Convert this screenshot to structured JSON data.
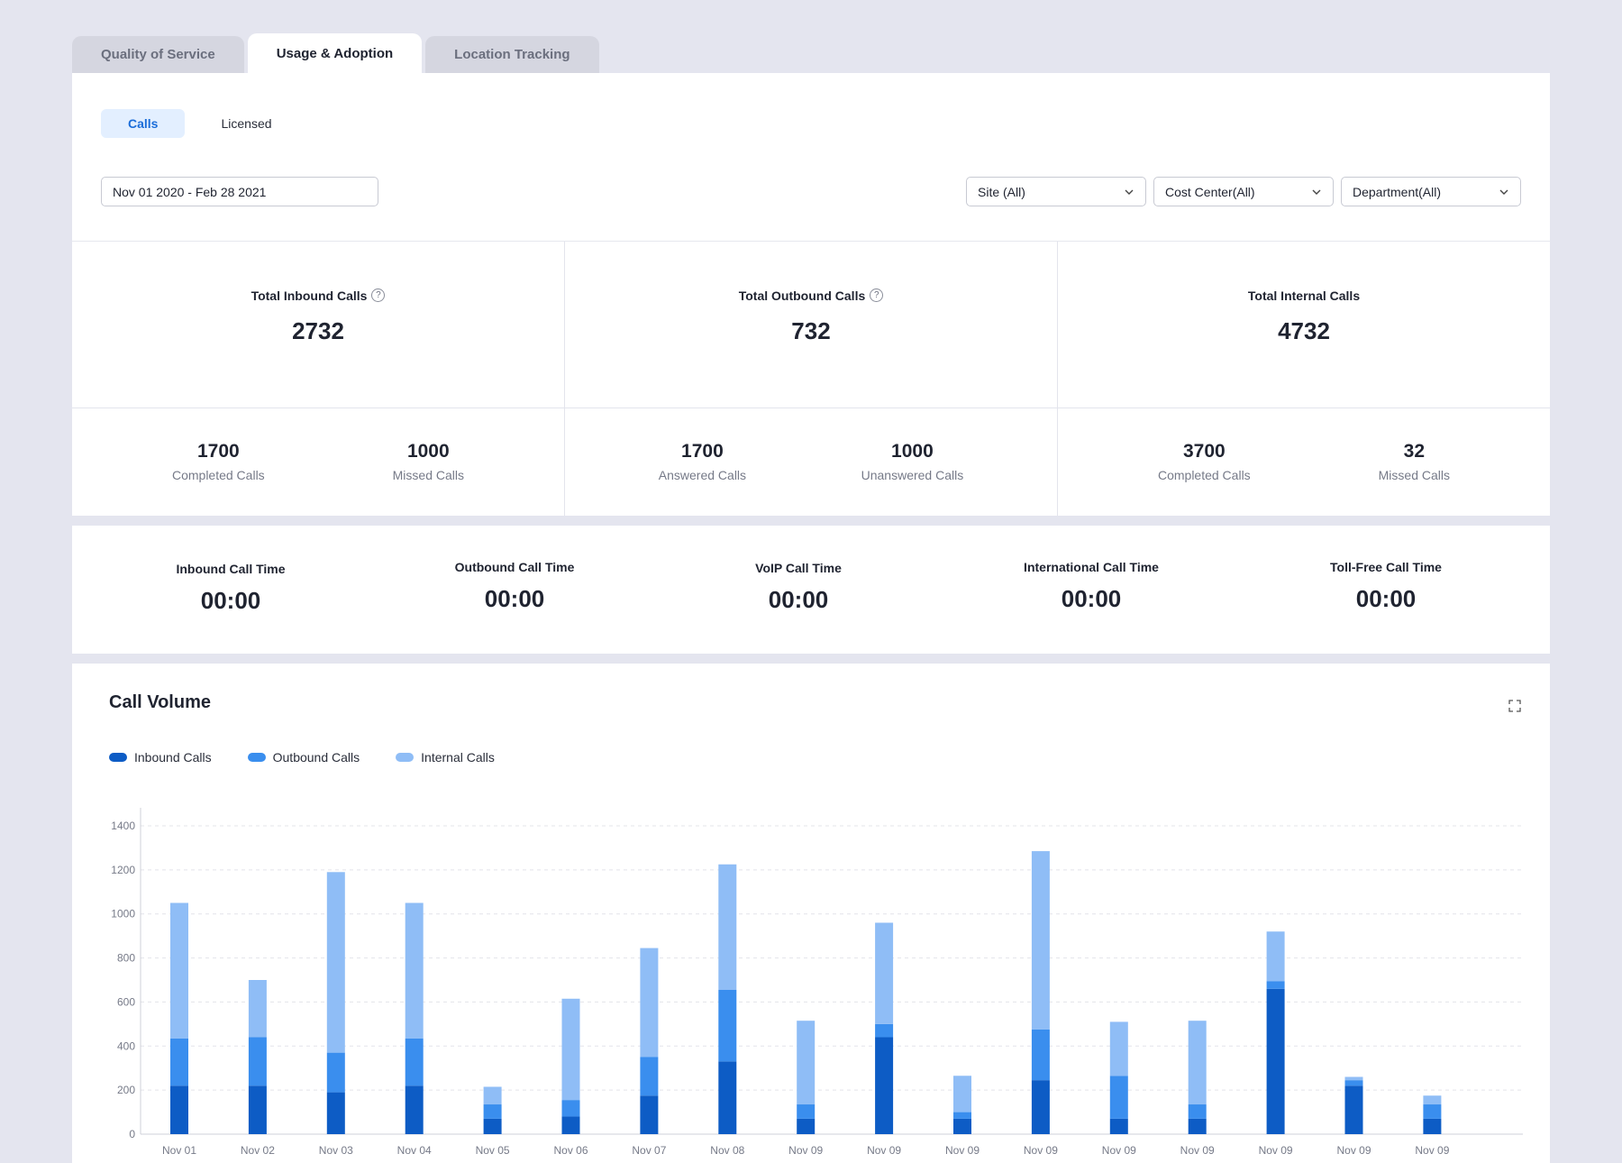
{
  "tabs": [
    "Quality of Service",
    "Usage & Adoption",
    "Location Tracking"
  ],
  "subtabs": [
    "Calls",
    "Licensed"
  ],
  "filters": {
    "date_range": "Nov 01 2020 - Feb 28 2021",
    "site": "Site (All)",
    "cost_center": "Cost Center(All)",
    "department": "Department(All)"
  },
  "stats": [
    {
      "title": "Total Inbound Calls",
      "value": "2732",
      "help": true,
      "a_value": "1700",
      "a_label": "Completed Calls",
      "b_value": "1000",
      "b_label": "Missed Calls"
    },
    {
      "title": "Total Outbound Calls",
      "value": "732",
      "help": true,
      "a_value": "1700",
      "a_label": "Answered Calls",
      "b_value": "1000",
      "b_label": "Unanswered Calls"
    },
    {
      "title": "Total Internal Calls",
      "value": "4732",
      "help": false,
      "a_value": "3700",
      "a_label": "Completed Calls",
      "b_value": "32",
      "b_label": "Missed Calls"
    }
  ],
  "call_times": [
    {
      "label": "Inbound Call Time",
      "value": "00:00"
    },
    {
      "label": "Outbound Call Time",
      "value": "00:00"
    },
    {
      "label": "VoIP Call Time",
      "value": "00:00"
    },
    {
      "label": "International Call Time",
      "value": "00:00"
    },
    {
      "label": "Toll-Free Call Time",
      "value": "00:00"
    }
  ],
  "chart_title": "Call Volume",
  "colors": {
    "inbound": "#0d5cc5",
    "outbound": "#3a8eee",
    "internal": "#8fbdf6",
    "accent": "#1b6dd9"
  },
  "chart_data": {
    "type": "bar",
    "stacked": true,
    "title": "Call Volume",
    "ylim": [
      0,
      1400
    ],
    "yticks": [
      0,
      200,
      400,
      600,
      800,
      1000,
      1200,
      1400
    ],
    "grid": true,
    "legend_position": "top-left",
    "categories": [
      "Nov 01",
      "Nov 02",
      "Nov 03",
      "Nov 04",
      "Nov 05",
      "Nov 06",
      "Nov 07",
      "Nov 08",
      "Nov 09",
      "Nov 09",
      "Nov 09",
      "Nov 09",
      "Nov 09",
      "Nov 09",
      "Nov 09",
      "Nov 09",
      "Nov 09"
    ],
    "series": [
      {
        "name": "Inbound Calls",
        "values": [
          220,
          220,
          190,
          220,
          70,
          80,
          175,
          330,
          70,
          440,
          70,
          245,
          70,
          70,
          660,
          220,
          70
        ]
      },
      {
        "name": "Outbound Calls",
        "values": [
          215,
          220,
          180,
          215,
          65,
          75,
          175,
          325,
          65,
          60,
          30,
          230,
          195,
          65,
          35,
          25,
          65
        ]
      },
      {
        "name": "Internal Calls",
        "values": [
          615,
          260,
          820,
          615,
          80,
          460,
          495,
          570,
          380,
          460,
          165,
          810,
          245,
          380,
          225,
          15,
          40
        ]
      }
    ]
  }
}
